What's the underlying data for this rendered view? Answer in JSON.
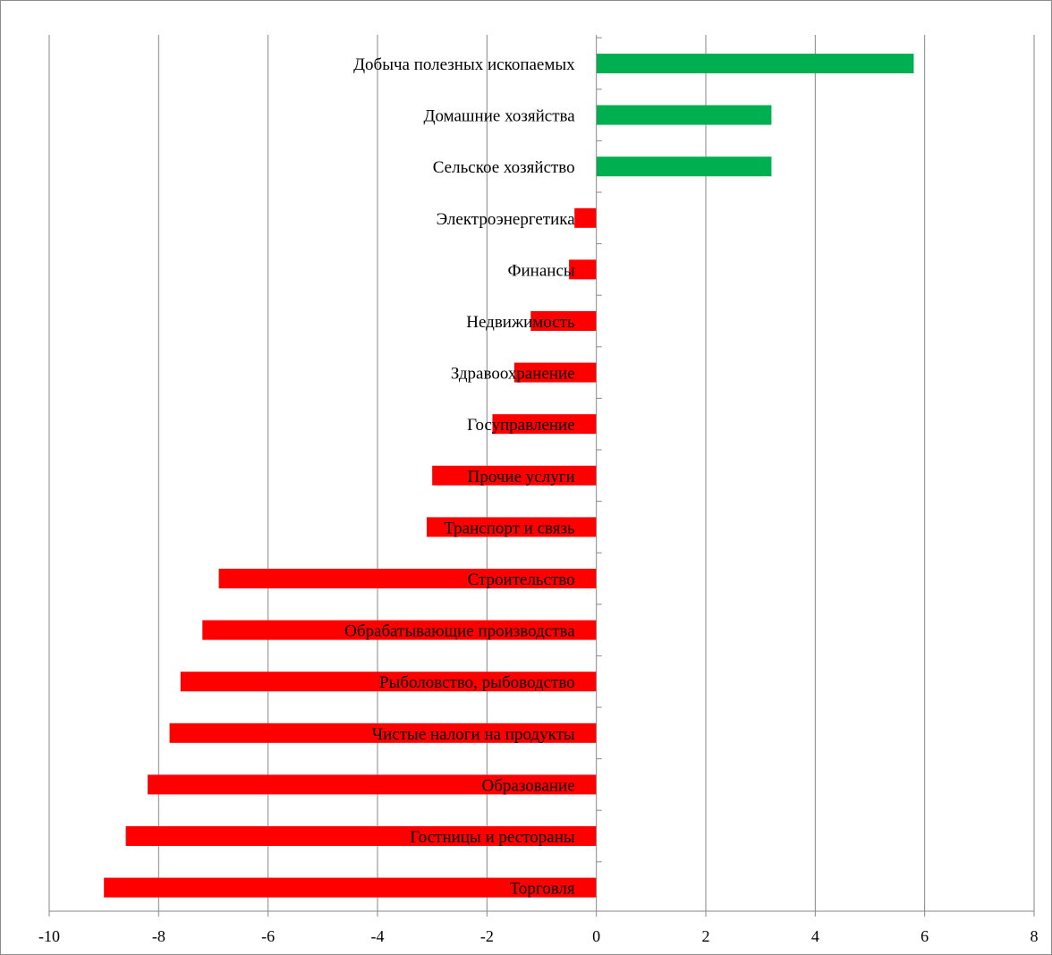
{
  "chart_data": {
    "type": "bar",
    "orientation": "horizontal",
    "title": "",
    "xlabel": "",
    "ylabel": "",
    "xlim": [
      -10,
      8
    ],
    "x_ticks": [
      -10,
      -8,
      -6,
      -4,
      -2,
      0,
      2,
      4,
      6,
      8
    ],
    "grid": "vertical",
    "legend": "none",
    "colors": {
      "positive": "#00b050",
      "negative": "#ff0000"
    },
    "categories": [
      "Добыча полезных  ископаемых",
      "Домашние хозяйства",
      "Сельское  хозяйство",
      "Электроэнергетика",
      "Финансы",
      "Недвижимость",
      "Здравоохранение",
      "Госуправление",
      "Прочие услуги",
      "Транспорт и связь",
      "Строительство",
      "Обрабатывающие производства",
      "Рыболовство, рыбоводство",
      "Чистые  налоги на продукты",
      "Образование",
      "Гостницы и рестораны",
      "Торговля"
    ],
    "values": [
      5.8,
      3.2,
      3.2,
      -0.4,
      -0.5,
      -1.2,
      -1.5,
      -1.9,
      -3.0,
      -3.1,
      -6.9,
      -7.2,
      -7.6,
      -7.8,
      -8.2,
      -8.6,
      -9.0
    ]
  }
}
